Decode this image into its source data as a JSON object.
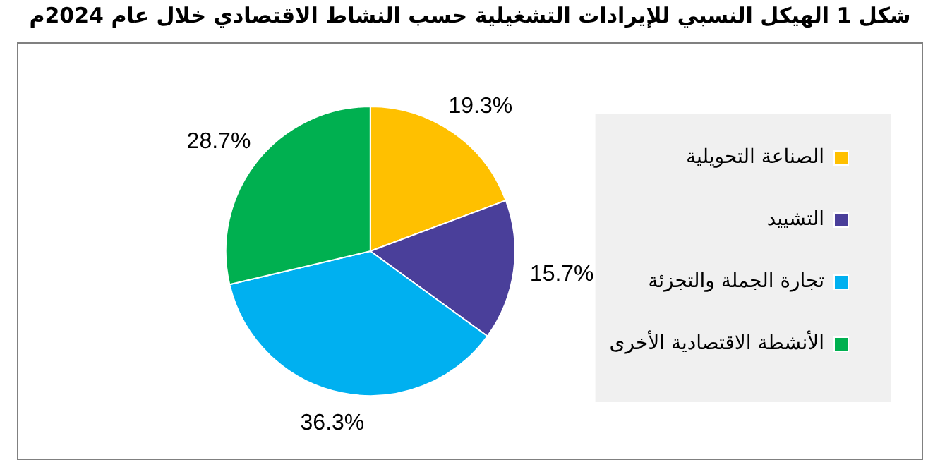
{
  "chart_data": {
    "type": "pie",
    "title": "شكل 1 الهيكل النسبي للإيرادات التشغيلية حسب النشاط الاقتصادي خلال عام 2024م",
    "categories": [
      "الصناعة التحويلية",
      "التشييد",
      "تجارة الجملة والتجزئة",
      "الأنشطة الاقتصادية الأخرى"
    ],
    "values": [
      19.3,
      15.7,
      36.3,
      28.7
    ],
    "colors": [
      "#ffc000",
      "#4a3f9a",
      "#00b0f0",
      "#00b050"
    ],
    "value_labels": [
      "19.3%",
      "15.7%",
      "36.3%",
      "28.7%"
    ],
    "legend": "right"
  }
}
